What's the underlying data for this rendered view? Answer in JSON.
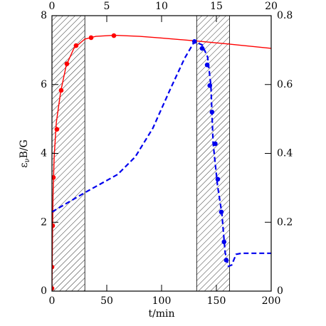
{
  "chart_data": {
    "type": "line",
    "xlabel": "t/min",
    "ylabel": {
      "main": "ε",
      "sub": "ν",
      "rest": "B/G"
    },
    "xlim": [
      0,
      200
    ],
    "xticks": [
      0,
      50,
      100,
      150,
      200
    ],
    "x2lim": [
      0,
      20
    ],
    "x2ticks": [
      0,
      5,
      10,
      15,
      20
    ],
    "ylim": [
      0,
      8
    ],
    "yticks": [
      0,
      2,
      4,
      6,
      8
    ],
    "y2lim": [
      0,
      0.8
    ],
    "y2ticks": [
      0,
      0.2,
      0.4,
      0.6,
      0.8
    ],
    "shaded_regions": [
      [
        0,
        30
      ],
      [
        132,
        162
      ]
    ],
    "series": [
      {
        "style": "solid",
        "color": "#ff0000",
        "axis": "y",
        "x": [
          0,
          0.5,
          1,
          2,
          4,
          8,
          13,
          20,
          30,
          40,
          57,
          80,
          100,
          130,
          160,
          200
        ],
        "values": [
          0.05,
          1.6,
          2.8,
          3.9,
          4.9,
          5.8,
          6.55,
          7.05,
          7.32,
          7.4,
          7.43,
          7.4,
          7.35,
          7.27,
          7.18,
          7.05
        ]
      },
      {
        "style": "dots",
        "color": "#ff0000",
        "axis": "y",
        "x": [
          0,
          0,
          0.6,
          1.3,
          4.5,
          8.4,
          13.6,
          22,
          35.7,
          56.5
        ],
        "values": [
          0.08,
          0.7,
          1.9,
          3.3,
          4.7,
          5.83,
          6.6,
          7.13,
          7.36,
          7.42
        ]
      },
      {
        "style": "dashed",
        "color": "#0000ee",
        "axis": "y2",
        "x": [
          0,
          30.5,
          60,
          76,
          92,
          108,
          121,
          130,
          137,
          142,
          145,
          147,
          151,
          155,
          158,
          161,
          164,
          168,
          173,
          200
        ],
        "values": [
          0.23,
          0.287,
          0.339,
          0.39,
          0.473,
          0.587,
          0.676,
          0.725,
          0.715,
          0.68,
          0.597,
          0.43,
          0.308,
          0.225,
          0.112,
          0.072,
          0.076,
          0.107,
          0.11,
          0.11
        ]
      },
      {
        "style": "dots",
        "color": "#0000ee",
        "axis": "y2",
        "x": [
          130,
          137,
          141.6,
          144,
          146,
          149,
          151.3,
          154.5,
          157,
          159
        ],
        "values": [
          0.725,
          0.705,
          0.657,
          0.597,
          0.52,
          0.428,
          0.325,
          0.23,
          0.143,
          0.09
        ]
      }
    ]
  }
}
